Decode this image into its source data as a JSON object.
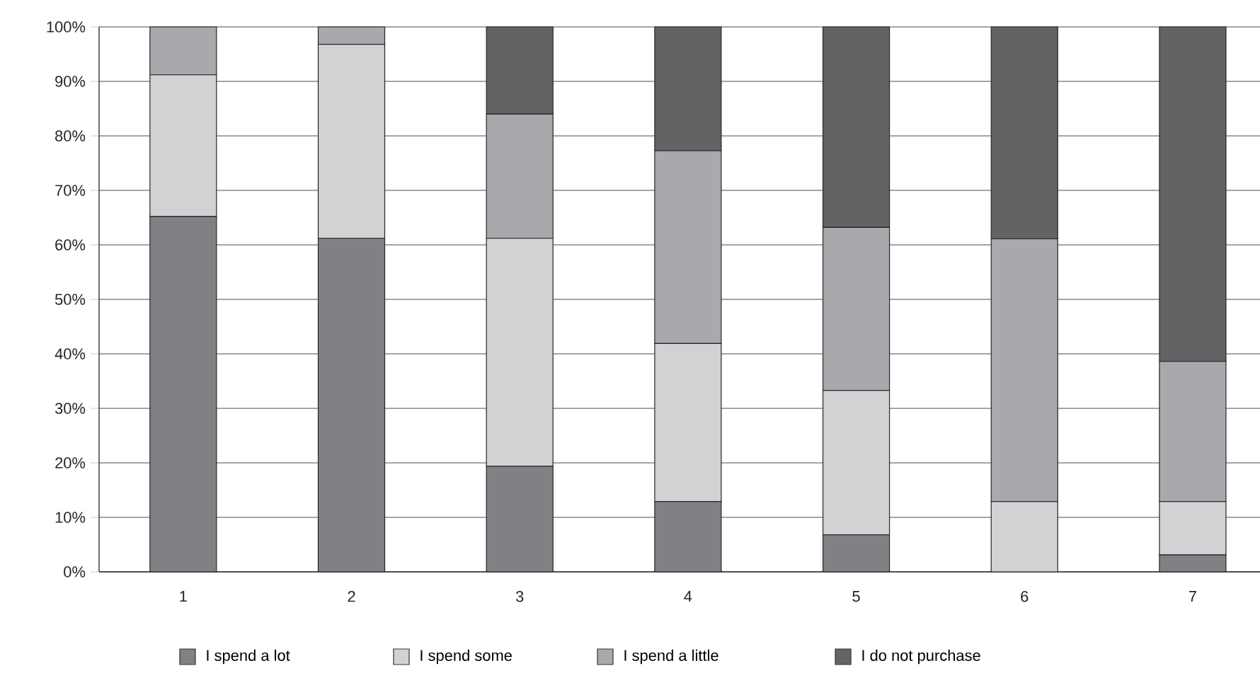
{
  "chart_data": {
    "type": "bar",
    "stacked": true,
    "categories": [
      "1",
      "2",
      "3",
      "4",
      "5",
      "6",
      "7"
    ],
    "series": [
      {
        "name": "I spend a lot",
        "color": "#808184",
        "values": [
          65.2,
          61.2,
          19.4,
          12.9,
          6.8,
          0,
          3.1
        ]
      },
      {
        "name": "I spend some",
        "color": "#d1d2d4",
        "values": [
          26,
          35.6,
          41.8,
          29,
          26.5,
          12.9,
          9.8
        ]
      },
      {
        "name": "I spend a little",
        "color": "#a8a9ac",
        "values": [
          8.8,
          3.2,
          22.8,
          35.4,
          29.9,
          48.2,
          25.7
        ]
      },
      {
        "name": "I do not purchase",
        "color": "#636365",
        "values": [
          0,
          0,
          16,
          22.7,
          36.8,
          38.9,
          61.4
        ]
      }
    ],
    "ylim": [
      0,
      100
    ],
    "yticks": [
      {
        "value": 0,
        "label": "0%"
      },
      {
        "value": 10,
        "label": "10%"
      },
      {
        "value": 20,
        "label": "20%"
      },
      {
        "value": 30,
        "label": "30%"
      },
      {
        "value": 40,
        "label": "40%"
      },
      {
        "value": 50,
        "label": "50%"
      },
      {
        "value": 60,
        "label": "60%"
      },
      {
        "value": 70,
        "label": "70%"
      },
      {
        "value": 80,
        "label": "80%"
      },
      {
        "value": 90,
        "label": "90%"
      },
      {
        "value": 100,
        "label": "100%"
      }
    ],
    "grid": "y",
    "legend": "bottom"
  }
}
